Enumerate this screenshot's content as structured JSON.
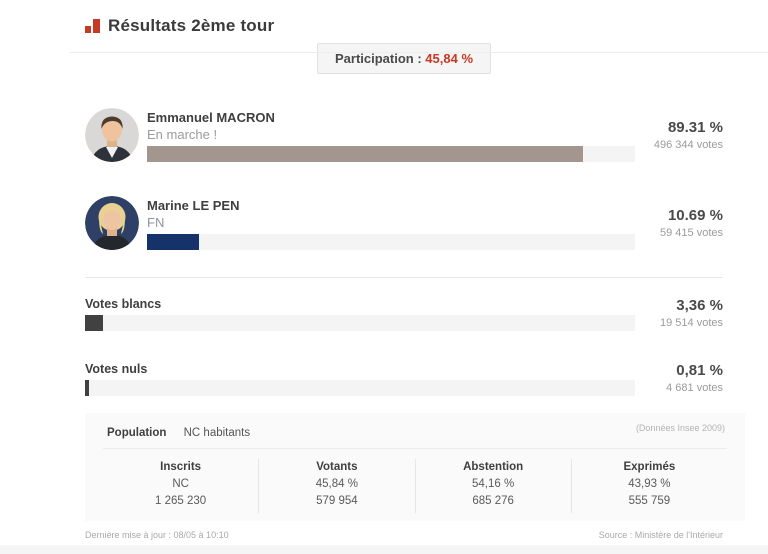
{
  "header": {
    "title": "Résultats 2ème tour",
    "accent_color": "#c43a25"
  },
  "participation": {
    "label": "Participation :",
    "value": "45,84 %",
    "value_color": "#c43a25"
  },
  "candidates": [
    {
      "name": "Emmanuel MACRON",
      "party": "En marche !",
      "party_color": "#9b9b9b",
      "percent": 89.31,
      "percent_label": "89.31 %",
      "votes": "496 344 votes",
      "bar_color": "#a3968f",
      "avatar": "macron-portrait"
    },
    {
      "name": "Marine LE PEN",
      "party": "FN",
      "party_color": "#8b95a5",
      "percent": 10.69,
      "percent_label": "10.69 %",
      "votes": "59 415 votes",
      "bar_color": "#16326b",
      "avatar": "lepen-portrait"
    }
  ],
  "other_votes": [
    {
      "label": "Votes blancs",
      "percent": 3.36,
      "percent_label": "3,36 %",
      "votes": "19 514 votes",
      "bar_color": "#414141"
    },
    {
      "label": "Votes nuls",
      "percent": 0.81,
      "percent_label": "0,81 %",
      "votes": "4 681 votes",
      "bar_color": "#414141"
    }
  ],
  "stats": {
    "population_label": "Population",
    "population_value": "NC habitants",
    "insee_note": "(Données Insee 2009)",
    "columns": [
      {
        "header": "Inscrits",
        "percent": "NC",
        "count": "1 265 230"
      },
      {
        "header": "Votants",
        "percent": "45,84 %",
        "count": "579 954"
      },
      {
        "header": "Abstention",
        "percent": "54,16 %",
        "count": "685 276"
      },
      {
        "header": "Exprimés",
        "percent": "43,93 %",
        "count": "555 759"
      }
    ]
  },
  "footer": {
    "updated": "Dernière mise à jour : 08/05 à 10:10",
    "source": "Source : Ministère de l'Intérieur"
  },
  "chart_data": {
    "type": "bar",
    "orientation": "horizontal",
    "title": "Résultats 2ème tour",
    "categories": [
      "Emmanuel MACRON (En marche !)",
      "Marine LE PEN (FN)",
      "Votes blancs",
      "Votes nuls"
    ],
    "values": [
      89.31,
      10.69,
      3.36,
      0.81
    ],
    "votes": [
      496344,
      59415,
      19514,
      4681
    ],
    "unit": "%",
    "xlim": [
      0,
      100
    ],
    "participation_percent": 45.84,
    "bar_colors": [
      "#a3968f",
      "#16326b",
      "#414141",
      "#414141"
    ],
    "legend_position": "none",
    "grid": false
  }
}
